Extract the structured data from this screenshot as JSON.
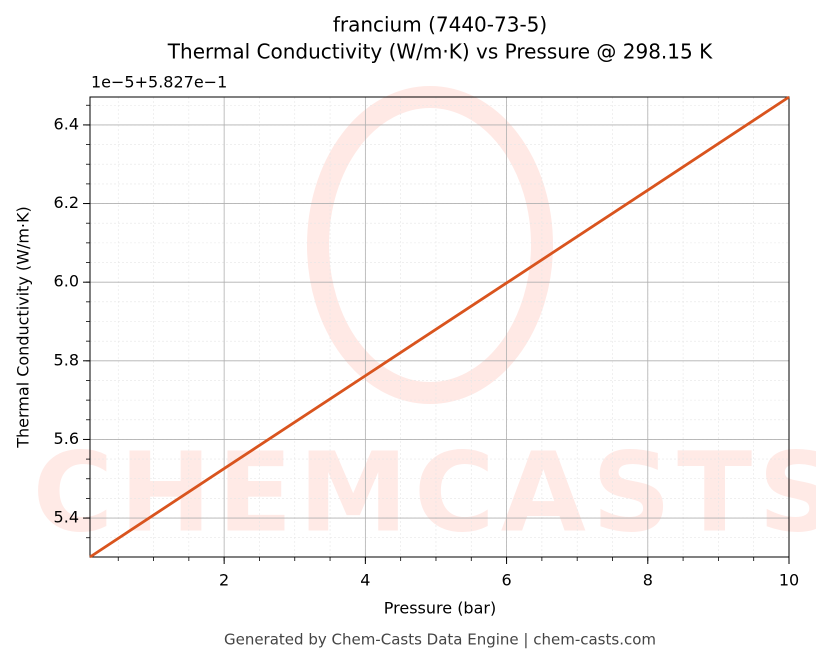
{
  "chart_data": {
    "type": "line",
    "title": "francium (7440-73-5)",
    "subtitle": "Thermal Conductivity (W/m·K) vs Pressure @ 298.15 K",
    "x_label": "Pressure (bar)",
    "y_label": "Thermal Conductivity (W/m·K)",
    "y_offset_label": "1e−5+5.827e−1",
    "watermark": "CHEMCASTS",
    "footer": "Generated by Chem-Casts Data Engine | chem-casts.com",
    "x": [
      0.1,
      2,
      4,
      6,
      8,
      10
    ],
    "series": [
      {
        "name": "Thermal Conductivity",
        "color": "#d9541e",
        "values": [
          5.301,
          5.526,
          5.762,
          5.998,
          6.234,
          6.471
        ]
      }
    ],
    "xlim": [
      0.1,
      10
    ],
    "xticks": [
      2,
      4,
      6,
      8,
      10
    ],
    "ylim": [
      5.301,
      6.471
    ],
    "yticks": [
      5.4,
      5.6,
      5.8,
      6.0,
      6.2,
      6.4
    ],
    "grid": true
  }
}
